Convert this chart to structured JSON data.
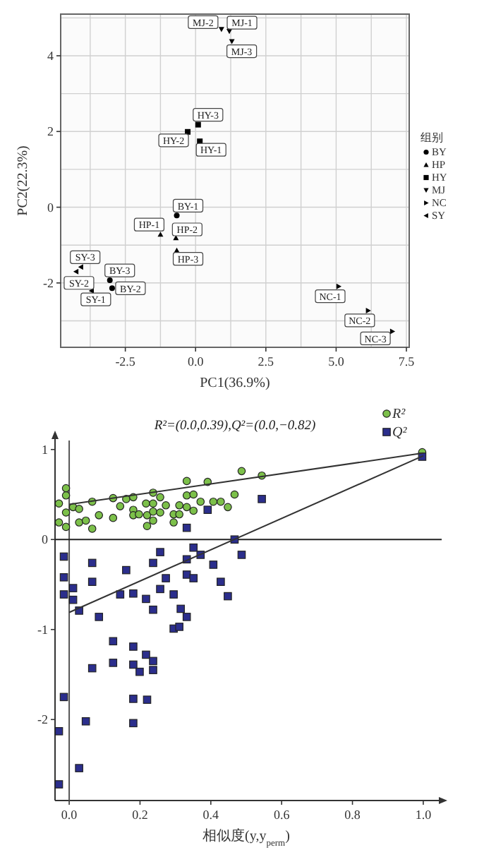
{
  "chart_data": [
    {
      "type": "scatter",
      "xlabel": "PC1(36.9%)",
      "ylabel": "PC2(22.3%)",
      "legend_title": "组别",
      "legend": "right",
      "grid": true,
      "xlim": [
        -4.8,
        7.6
      ],
      "ylim": [
        -3.7,
        5.1
      ],
      "xticks": [
        {
          "value": -2.5,
          "label": "-2.5"
        },
        {
          "value": 0,
          "label": "0.0"
        },
        {
          "value": 2.5,
          "label": "2.5"
        },
        {
          "value": 5,
          "label": "5.0"
        },
        {
          "value": 7.5,
          "label": "7.5"
        }
      ],
      "yticks": [
        -2,
        0,
        2,
        4
      ],
      "series": [
        {
          "name": "BY",
          "color": "#000000",
          "marker": "circle",
          "x": [
            -0.67,
            -2.97,
            -3.05
          ],
          "values": [
            -0.22,
            -2.14,
            -1.93
          ]
        },
        {
          "name": "HP",
          "color": "#000000",
          "marker": "triangle",
          "x": [
            -1.25,
            -0.7,
            -0.67
          ],
          "values": [
            -0.72,
            -0.81,
            -1.14
          ]
        },
        {
          "name": "HY",
          "color": "#000000",
          "marker": "square",
          "x": [
            0.15,
            -0.28,
            0.09
          ],
          "values": [
            1.74,
            1.99,
            2.18
          ]
        },
        {
          "name": "MJ",
          "color": "#000000",
          "marker": "triangle-down",
          "x": [
            1.2,
            0.92,
            1.29
          ],
          "values": [
            4.65,
            4.7,
            4.38
          ]
        },
        {
          "name": "NC",
          "color": "#000000",
          "marker": "triangle-right",
          "x": [
            5.09,
            6.14,
            7.0
          ],
          "values": [
            -2.09,
            -2.73,
            -3.28
          ]
        },
        {
          "name": "SY",
          "color": "#000000",
          "marker": "triangle-left",
          "x": [
            -3.7,
            -4.25,
            -4.08
          ],
          "values": [
            -2.21,
            -1.7,
            -1.58
          ]
        }
      ],
      "annotations": [
        {
          "text": "BY-1",
          "x": -0.67,
          "y": -0.22
        },
        {
          "text": "BY-2",
          "x": -2.97,
          "y": -2.14
        },
        {
          "text": "BY-3",
          "x": -3.05,
          "y": -1.93
        },
        {
          "text": "HP-1",
          "x": -1.25,
          "y": -0.72
        },
        {
          "text": "HP-2",
          "x": -0.7,
          "y": -0.81
        },
        {
          "text": "HP-3",
          "x": -0.67,
          "y": -1.14
        },
        {
          "text": "HY-1",
          "x": 0.15,
          "y": 1.74
        },
        {
          "text": "HY-2",
          "x": -0.28,
          "y": 1.99
        },
        {
          "text": "HY-3",
          "x": 0.09,
          "y": 2.18
        },
        {
          "text": "MJ-1",
          "x": 1.2,
          "y": 4.65
        },
        {
          "text": "MJ-2",
          "x": 0.92,
          "y": 4.7
        },
        {
          "text": "MJ-3",
          "x": 1.29,
          "y": 4.38
        },
        {
          "text": "NC-1",
          "x": 5.09,
          "y": -2.09
        },
        {
          "text": "NC-2",
          "x": 6.14,
          "y": -2.73
        },
        {
          "text": "NC-3",
          "x": 7.0,
          "y": -3.28
        },
        {
          "text": "SY-1",
          "x": -3.7,
          "y": -2.21
        },
        {
          "text": "SY-2",
          "x": -4.25,
          "y": -1.7
        },
        {
          "text": "SY-3",
          "x": -4.08,
          "y": -1.58
        }
      ]
    },
    {
      "type": "scatter",
      "title": "R²=(0.0,0.39),Q²=(0.0,−0.82)",
      "xlabel": "相似度(y,y$_{perm}$)",
      "legend": "top right",
      "grid": false,
      "xlim": [
        -0.04,
        1.04
      ],
      "ylim": [
        -2.9,
        1.1
      ],
      "xticks": [
        {
          "value": 0,
          "label": "0.0"
        },
        {
          "value": 0.2,
          "label": "0.2"
        },
        {
          "value": 0.4,
          "label": "0.4"
        },
        {
          "value": 0.6,
          "label": "0.6"
        },
        {
          "value": 0.8,
          "label": "0.8"
        },
        {
          "value": 1,
          "label": "1.0"
        }
      ],
      "yticks": [
        -2,
        -1,
        0,
        1
      ],
      "ref_lines": [
        {
          "axis": "x",
          "value": 0,
          "color": "#555555"
        },
        {
          "axis": "y",
          "value": 0,
          "color": "#222222"
        }
      ],
      "series": [
        {
          "name": "R²",
          "color": "#7cc04a",
          "marker": "circle",
          "x": [
            -0.029,
            -0.029,
            -0.009,
            -0.009,
            -0.009,
            -0.009,
            0.011,
            0.028,
            0.028,
            0.047,
            0.065,
            0.065,
            0.084,
            0.124,
            0.124,
            0.144,
            0.161,
            0.181,
            0.181,
            0.181,
            0.197,
            0.217,
            0.22,
            0.22,
            0.237,
            0.237,
            0.237,
            0.237,
            0.257,
            0.257,
            0.273,
            0.295,
            0.295,
            0.311,
            0.311,
            0.332,
            0.332,
            0.332,
            0.351,
            0.351,
            0.371,
            0.391,
            0.407,
            0.428,
            0.448,
            0.467,
            0.487,
            0.544,
            0.997
          ],
          "values": [
            0.19,
            0.4,
            0.57,
            0.49,
            0.3,
            0.14,
            0.36,
            0.34,
            0.19,
            0.21,
            0.12,
            0.42,
            0.27,
            0.46,
            0.24,
            0.37,
            0.45,
            0.47,
            0.33,
            0.27,
            0.28,
            0.4,
            0.15,
            0.27,
            0.52,
            0.4,
            0.31,
            0.21,
            0.47,
            0.3,
            0.38,
            0.28,
            0.19,
            0.38,
            0.28,
            0.65,
            0.49,
            0.36,
            0.5,
            0.32,
            0.42,
            0.64,
            0.42,
            0.42,
            0.36,
            0.5,
            0.76,
            0.71,
            0.97
          ]
        },
        {
          "name": "Q²",
          "color": "#2b2e8c",
          "marker": "square",
          "x": [
            -0.015,
            -0.015,
            -0.015,
            0.011,
            0.011,
            0.028,
            0.065,
            0.065,
            0.084,
            0.124,
            0.161,
            0.144,
            0.181,
            0.217,
            0.237,
            0.237,
            0.257,
            0.257,
            0.273,
            0.295,
            0.295,
            0.311,
            0.315,
            0.332,
            0.332,
            0.332,
            0.332,
            0.351,
            0.351,
            0.371,
            0.391,
            0.407,
            0.428,
            0.448,
            0.467,
            0.487,
            0.544,
            0.997,
            0.181,
            0.217,
            0.237,
            0.124,
            0.181,
            0.065,
            0.237,
            0.199,
            -0.015,
            0.181,
            0.22,
            0.047,
            0.181,
            -0.029,
            0.028,
            -0.029
          ],
          "values": [
            -0.19,
            -0.42,
            -0.61,
            -0.54,
            -0.67,
            -0.79,
            -0.26,
            -0.47,
            -0.86,
            -1.13,
            -0.34,
            -0.61,
            -0.6,
            -0.66,
            -0.26,
            -0.78,
            -0.14,
            -0.55,
            -0.43,
            -0.61,
            -0.99,
            -0.97,
            -0.77,
            0.13,
            -0.22,
            -0.39,
            -0.86,
            -0.09,
            -0.43,
            -0.17,
            0.33,
            -0.28,
            -0.47,
            -0.63,
            0.0,
            -0.17,
            0.45,
            0.92,
            -1.19,
            -1.28,
            -1.35,
            -1.37,
            -1.39,
            -1.43,
            -1.45,
            -1.47,
            -1.75,
            -1.77,
            -1.78,
            -2.02,
            -2.04,
            -2.13,
            -2.54,
            -2.72
          ]
        },
        {
          "type": "line",
          "color": "#333333",
          "x": [
            0,
            1
          ],
          "values": [
            0.39,
            0.96
          ]
        },
        {
          "type": "line",
          "color": "#333333",
          "x": [
            0,
            1
          ],
          "values": [
            -0.81,
            0.93
          ]
        }
      ]
    }
  ]
}
